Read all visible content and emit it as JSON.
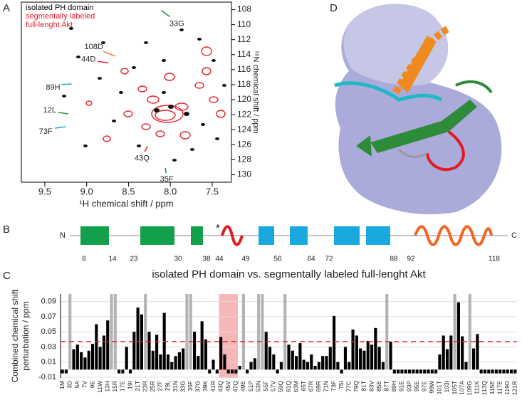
{
  "panels": [
    "A",
    "B",
    "C",
    "D"
  ],
  "chart_data": [
    {
      "type": "spectrum",
      "xlabel": "¹H chemical shift / ppm",
      "ylabel": "¹⁵N chemical shift / ppm",
      "xlim": [
        9.78,
        7.27
      ],
      "ylim": [
        131,
        107
      ],
      "xticks": [
        9.5,
        {
          "value": 9,
          "label": "9.0"
        },
        8.5,
        {
          "value": 8,
          "label": "8.0"
        },
        7.5
      ],
      "yticks": [
        108,
        110,
        112,
        114,
        116,
        118,
        120,
        122,
        124,
        126,
        128,
        130
      ],
      "series": [
        {
          "name": "isolated PH domain",
          "color": "#000000"
        },
        {
          "name": "segmentally labeled full-lenght Akt",
          "color": "#e8202a"
        }
      ],
      "annotations": [
        {
          "text": "33G",
          "color": "#1a8f3c",
          "x": 8.11,
          "y": 108.1
        },
        {
          "text": "108D",
          "color": "#f07f1c",
          "x": 8.66,
          "y": 114.2
        },
        {
          "text": "44D",
          "color": "#e8202a",
          "x": 8.74,
          "y": 115.1
        },
        {
          "text": "89H",
          "color": "#1aa6c8",
          "x": 9.18,
          "y": 117.9
        },
        {
          "text": "12L",
          "color": "#1a8f3c",
          "x": 9.22,
          "y": 121.9
        },
        {
          "text": "73F",
          "color": "#1aa6c8",
          "x": 9.25,
          "y": 123.6
        },
        {
          "text": "43Q",
          "color": "#e8202a",
          "x": 8.27,
          "y": 126.2
        },
        {
          "text": "35F",
          "color": "#1a8f3c",
          "x": 8.06,
          "y": 129.1
        }
      ]
    },
    {
      "type": "bar",
      "title": "isolated PH domain vs. segmentally labeled full-lenght Akt",
      "ylabel": [
        "Combined chemical shift",
        "perturbation / ppm"
      ],
      "categories": [
        "1M",
        null,
        "3D",
        null,
        "5A",
        null,
        "7V",
        null,
        "9E",
        null,
        "11W",
        null,
        "13H",
        null,
        "15R",
        null,
        "17E",
        null,
        "19I",
        null,
        "21T",
        null,
        "23R",
        null,
        "25R",
        null,
        "27F",
        null,
        "29L",
        null,
        "31N",
        null,
        "33G",
        null,
        "35F",
        null,
        "37G",
        null,
        "39K",
        null,
        "41R",
        null,
        "43Q",
        null,
        "45V",
        null,
        "47Q",
        null,
        "49E",
        null,
        "51P",
        null,
        "53N",
        null,
        "55F",
        null,
        "57V",
        null,
        "59Q",
        null,
        "61Q",
        null,
        "63M",
        null,
        "65T",
        null,
        "67R",
        null,
        "69R",
        null,
        "71N",
        null,
        "73F",
        null,
        "75I",
        null,
        "77C",
        null,
        "79Q",
        null,
        "81T",
        null,
        "83V",
        null,
        "85E",
        null,
        "87T",
        null,
        "89H",
        null,
        "91E",
        null,
        "93P",
        null,
        "95E",
        null,
        "97E",
        null,
        "99W",
        null,
        "101T",
        null,
        "103I",
        null,
        "105T",
        null,
        "107A",
        null,
        "109G",
        null,
        "111K",
        null,
        "113Q",
        null,
        "115E",
        null,
        "117E",
        null,
        "119D",
        null,
        "121R"
      ],
      "values": [
        -0.005,
        -0.005,
        null,
        0.027,
        0.033,
        0.023,
        0.016,
        0.025,
        0.034,
        0.06,
        0.03,
        0.045,
        0.065,
        null,
        null,
        -0.005,
        -0.005,
        0.03,
        -0.005,
        0.05,
        0.082,
        0.073,
        null,
        0.05,
        0.025,
        0.046,
        0.02,
        0.075,
        0.02,
        0.01,
        0.018,
        0.023,
        0.028,
        null,
        null,
        0.05,
        0.018,
        0.064,
        0.04,
        -0.005,
        0.013,
        -0.005,
        0.043,
        0.02,
        -0.005,
        -0.005,
        -0.005,
        0.005,
        null,
        -0.005,
        0.01,
        0.015,
        null,
        null,
        0.05,
        0.03,
        0.02,
        -0.005,
        0.01,
        null,
        0.033,
        0.025,
        0.018,
        0.035,
        0.013,
        0.01,
        0.02,
        0.005,
        0.01,
        0.018,
        0.018,
        0.03,
        0.071,
        0.01,
        -0.005,
        0.03,
        0.01,
        0.053,
        0.045,
        0.028,
        0.025,
        0.038,
        0.033,
        0.055,
        0.03,
        0.01,
        null,
        0.037,
        -0.005,
        -0.005,
        -0.005,
        -0.005,
        -0.005,
        -0.005,
        -0.005,
        -0.005,
        -0.005,
        -0.005,
        -0.005,
        -0.005,
        0.02,
        0.045,
        0.027,
        0.045,
        null,
        0.089,
        0.044,
        0.01,
        null,
        0.028,
        0.047,
        -0.005,
        -0.005,
        -0.005,
        -0.005,
        -0.005,
        -0.005,
        -0.005,
        -0.005,
        -0.005,
        -0.005
      ],
      "color": "#000000",
      "null_color": "#b3b3b3",
      "ylim": [
        -0.011,
        0.1
      ],
      "yticks": [
        -0.01,
        0.01,
        0.03,
        0.05,
        0.07,
        0.09
      ],
      "grid": true,
      "threshold": 0.037,
      "threshold_color": "#e8202a",
      "highlight": [
        "43Q",
        "47Q"
      ],
      "highlight_color": "#f7b6b8"
    }
  ],
  "diagram": {
    "n_label": "N",
    "c_label": "C",
    "marker": "*",
    "boundaries": [
      "6",
      "14",
      "23",
      "30",
      "38",
      "44",
      "49",
      "56",
      "64",
      "72",
      "88",
      "92",
      "118"
    ]
  }
}
